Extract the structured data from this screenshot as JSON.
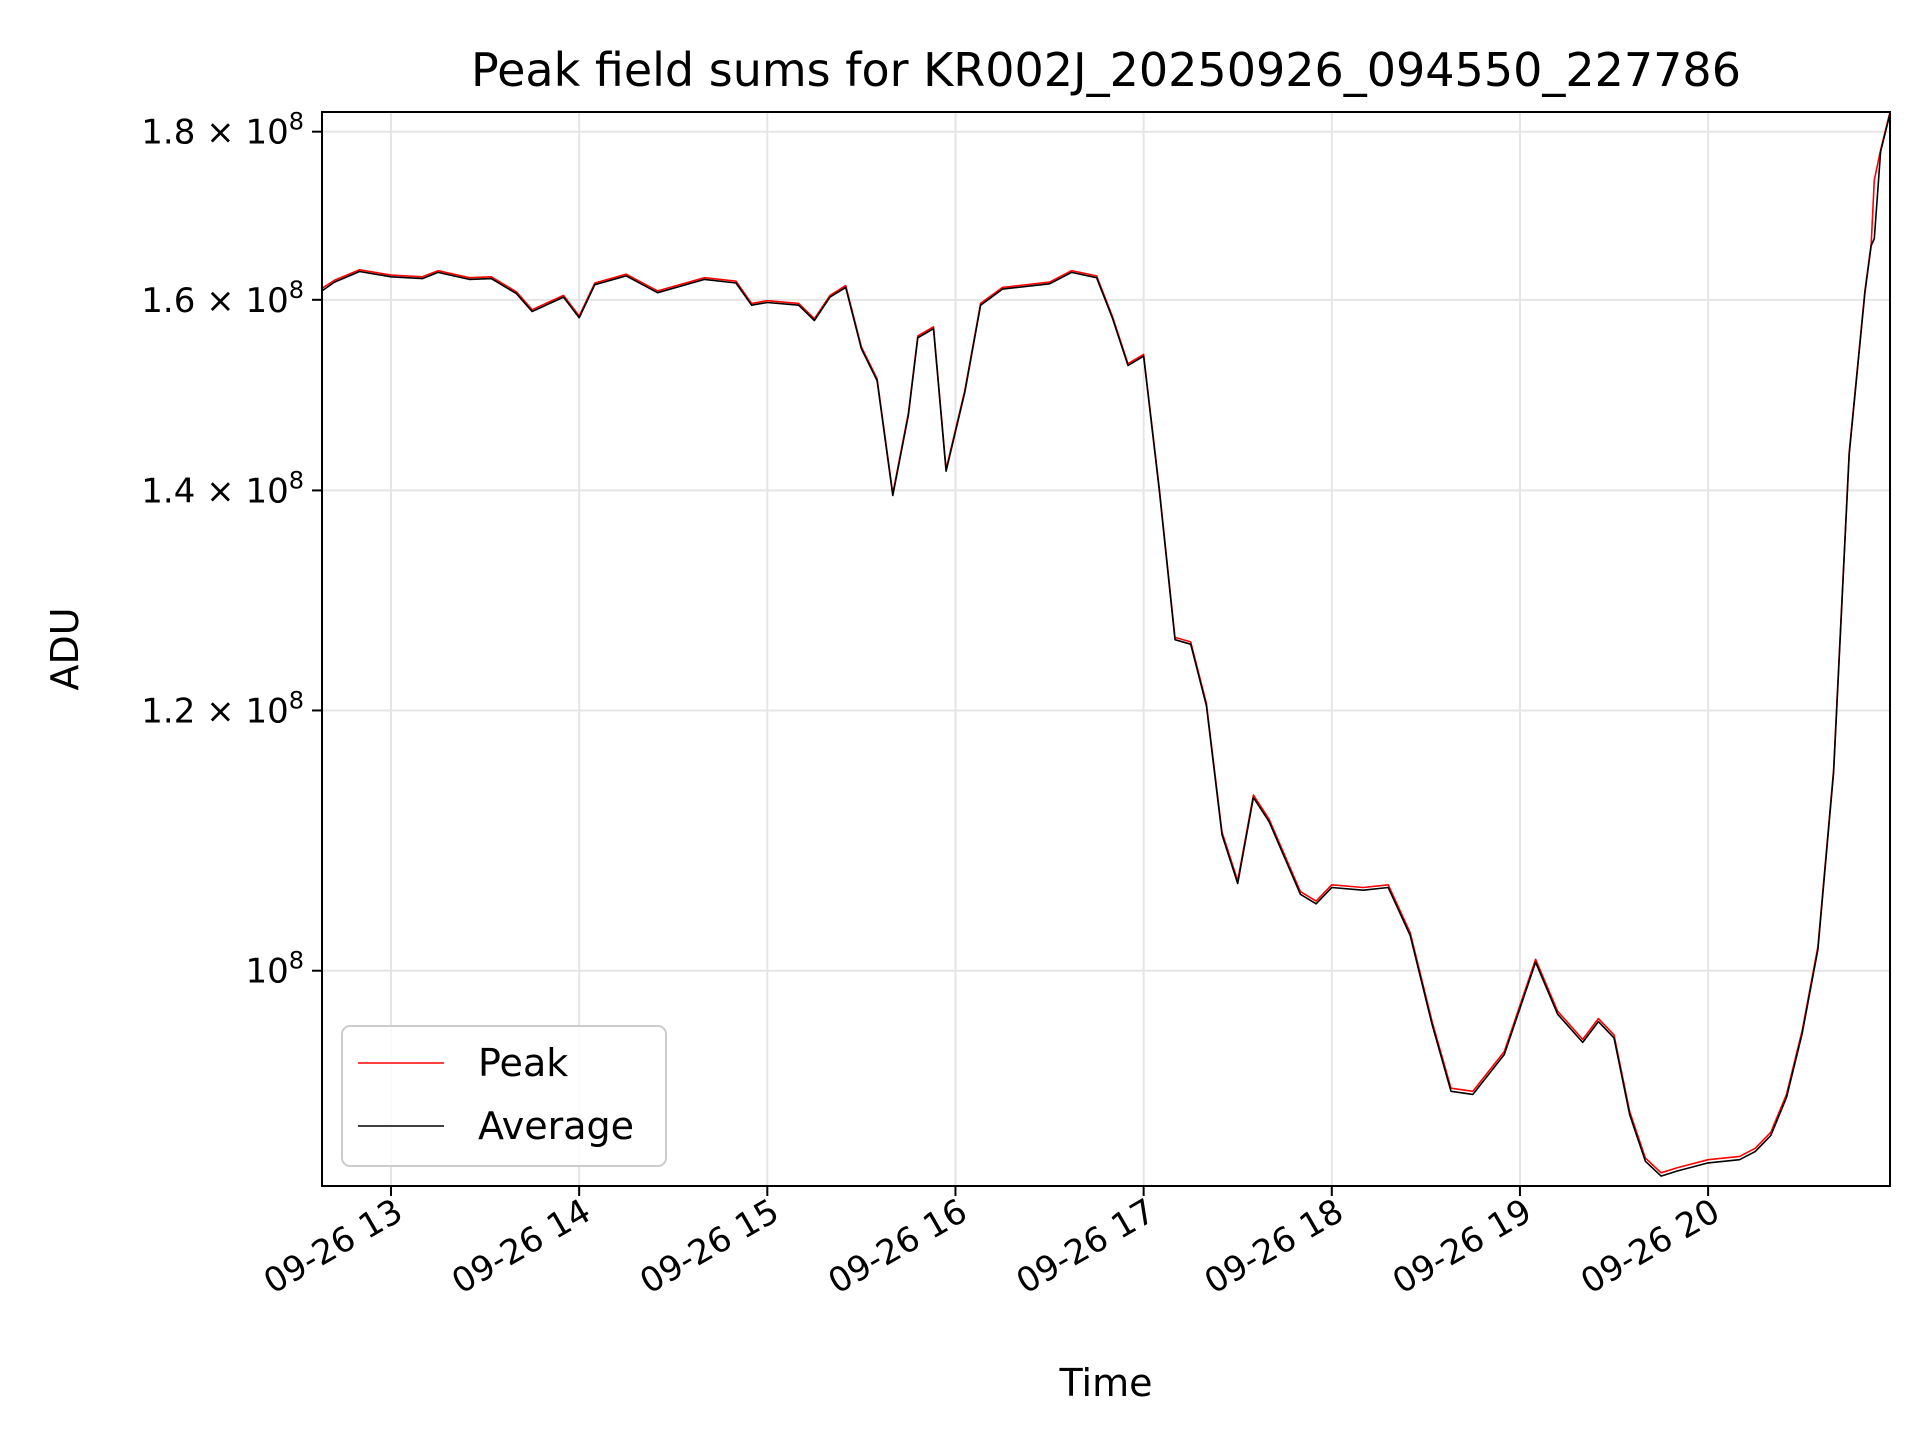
{
  "chart_data": {
    "type": "line",
    "title": "Peak field sums for KR002J_20250926_094550_227786",
    "xlabel": "Time",
    "ylabel": "ADU",
    "x_type": "datetime",
    "y_scale": "log",
    "xlim": [
      "2025-09-26 12:38",
      "2025-09-26 20:58"
    ],
    "ylim": [
      86000000,
      182500000
    ],
    "grid": true,
    "legend_position": "lower-left",
    "x_ticks": [
      {
        "value": "2025-09-26 13:00",
        "label": "09-26 13"
      },
      {
        "value": "2025-09-26 14:00",
        "label": "09-26 14"
      },
      {
        "value": "2025-09-26 15:00",
        "label": "09-26 15"
      },
      {
        "value": "2025-09-26 16:00",
        "label": "09-26 16"
      },
      {
        "value": "2025-09-26 17:00",
        "label": "09-26 17"
      },
      {
        "value": "2025-09-26 18:00",
        "label": "09-26 18"
      },
      {
        "value": "2025-09-26 19:00",
        "label": "09-26 19"
      },
      {
        "value": "2025-09-26 20:00",
        "label": "09-26 20"
      }
    ],
    "y_ticks": [
      {
        "value": 100000000,
        "label": "10",
        "exp": "8"
      },
      {
        "value": 120000000,
        "label": "1.2 × 10",
        "exp": "8"
      },
      {
        "value": 140000000,
        "label": "1.4 × 10",
        "exp": "8"
      },
      {
        "value": 160000000,
        "label": "1.6 × 10",
        "exp": "8"
      },
      {
        "value": 180000000,
        "label": "1.8 × 10",
        "exp": "8"
      }
    ],
    "x": [
      "2025-09-26 12:38",
      "2025-09-26 12:42",
      "2025-09-26 12:50",
      "2025-09-26 13:00",
      "2025-09-26 13:10",
      "2025-09-26 13:15",
      "2025-09-26 13:25",
      "2025-09-26 13:32",
      "2025-09-26 13:40",
      "2025-09-26 13:45",
      "2025-09-26 13:55",
      "2025-09-26 14:00",
      "2025-09-26 14:05",
      "2025-09-26 14:15",
      "2025-09-26 14:25",
      "2025-09-26 14:40",
      "2025-09-26 14:50",
      "2025-09-26 14:55",
      "2025-09-26 15:00",
      "2025-09-26 15:10",
      "2025-09-26 15:15",
      "2025-09-26 15:20",
      "2025-09-26 15:25",
      "2025-09-26 15:30",
      "2025-09-26 15:35",
      "2025-09-26 15:40",
      "2025-09-26 15:45",
      "2025-09-26 15:48",
      "2025-09-26 15:53",
      "2025-09-26 15:57",
      "2025-09-26 16:03",
      "2025-09-26 16:08",
      "2025-09-26 16:15",
      "2025-09-26 16:30",
      "2025-09-26 16:37",
      "2025-09-26 16:45",
      "2025-09-26 16:50",
      "2025-09-26 16:55",
      "2025-09-26 17:00",
      "2025-09-26 17:05",
      "2025-09-26 17:10",
      "2025-09-26 17:15",
      "2025-09-26 17:20",
      "2025-09-26 17:25",
      "2025-09-26 17:30",
      "2025-09-26 17:35",
      "2025-09-26 17:40",
      "2025-09-26 17:50",
      "2025-09-26 17:55",
      "2025-09-26 18:00",
      "2025-09-26 18:10",
      "2025-09-26 18:18",
      "2025-09-26 18:25",
      "2025-09-26 18:32",
      "2025-09-26 18:38",
      "2025-09-26 18:45",
      "2025-09-26 18:55",
      "2025-09-26 19:05",
      "2025-09-26 19:12",
      "2025-09-26 19:20",
      "2025-09-26 19:25",
      "2025-09-26 19:30",
      "2025-09-26 19:35",
      "2025-09-26 19:40",
      "2025-09-26 19:45",
      "2025-09-26 19:50",
      "2025-09-26 20:00",
      "2025-09-26 20:10",
      "2025-09-26 20:15",
      "2025-09-26 20:20",
      "2025-09-26 20:25",
      "2025-09-26 20:30",
      "2025-09-26 20:35",
      "2025-09-26 20:40",
      "2025-09-26 20:45",
      "2025-09-26 20:50",
      "2025-09-26 20:52",
      "2025-09-26 20:53",
      "2025-09-26 20:55",
      "2025-09-26 20:58"
    ],
    "series": [
      {
        "name": "Peak",
        "color": "#ff0000",
        "values": [
          161300000,
          162200000,
          163400000,
          162800000,
          162600000,
          163300000,
          162500000,
          162600000,
          160900000,
          158900000,
          160500000,
          158200000,
          161900000,
          162900000,
          161000000,
          162500000,
          162100000,
          159600000,
          159900000,
          159600000,
          157900000,
          160500000,
          161600000,
          154800000,
          151400000,
          139700000,
          147800000,
          156000000,
          157000000,
          142100000,
          150200000,
          159600000,
          161400000,
          162000000,
          163300000,
          162700000,
          158200000,
          153000000,
          154000000,
          140200000,
          126300000,
          125900000,
          120600000,
          110200000,
          106500000,
          113100000,
          111200000,
          105700000,
          105000000,
          106200000,
          106000000,
          106200000,
          102700000,
          96500000,
          92100000,
          91900000,
          94500000,
          100800000,
          97200000,
          95300000,
          96700000,
          95600000,
          90600000,
          87700000,
          86800000,
          87100000,
          87600000,
          87800000,
          88300000,
          89300000,
          91700000,
          95900000,
          101700000,
          115100000,
          143800000,
          161000000,
          166400000,
          174000000,
          177700000,
          182500000
        ]
      },
      {
        "name": "Average",
        "color": "#000000",
        "values": [
          161000000,
          162000000,
          163200000,
          162600000,
          162400000,
          163100000,
          162300000,
          162400000,
          160700000,
          158700000,
          160300000,
          158000000,
          161700000,
          162700000,
          160800000,
          162300000,
          161900000,
          159400000,
          159700000,
          159400000,
          157700000,
          160300000,
          161400000,
          154600000,
          151200000,
          139500000,
          147600000,
          155800000,
          156800000,
          141900000,
          150000000,
          159400000,
          161200000,
          161800000,
          163100000,
          162500000,
          158000000,
          152800000,
          153800000,
          140000000,
          126100000,
          125700000,
          120400000,
          110000000,
          106300000,
          112900000,
          111000000,
          105500000,
          104800000,
          106000000,
          105800000,
          106000000,
          102500000,
          96300000,
          91900000,
          91700000,
          94300000,
          100600000,
          97000000,
          95100000,
          96500000,
          95400000,
          90400000,
          87500000,
          86600000,
          86900000,
          87400000,
          87600000,
          88100000,
          89100000,
          91500000,
          95700000,
          101500000,
          114900000,
          143600000,
          160800000,
          166200000,
          167000000,
          177500000,
          182300000
        ]
      }
    ]
  }
}
